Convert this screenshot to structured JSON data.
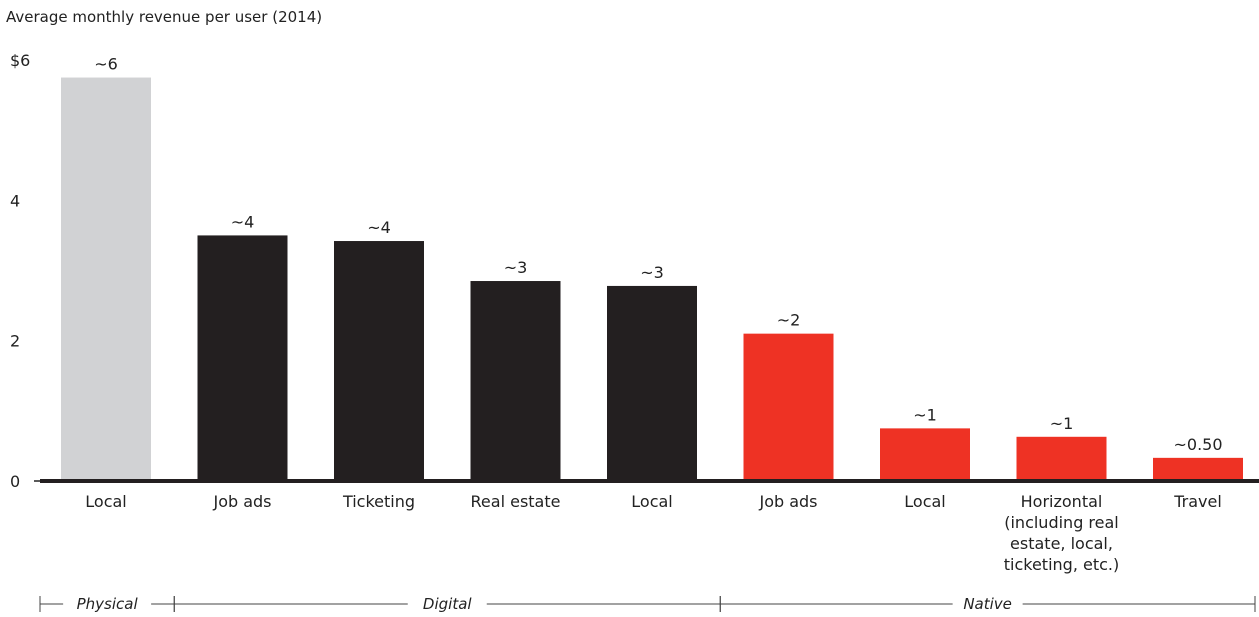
{
  "chart_data": {
    "type": "bar",
    "title": "Average monthly revenue per user (2014)",
    "ylim": [
      0,
      6
    ],
    "yticks": [
      {
        "value": 0,
        "label": "0"
      },
      {
        "value": 2,
        "label": "2"
      },
      {
        "value": 4,
        "label": "4"
      },
      {
        "value": 6,
        "label": "$6"
      }
    ],
    "categories": [
      "Local",
      "Job ads",
      "Ticketing",
      "Real estate",
      "Local",
      "Job ads",
      "Local",
      "Horizontal (including real estate, local, ticketing, etc.)",
      "Travel"
    ],
    "category_lines": [
      [
        "Local"
      ],
      [
        "Job ads"
      ],
      [
        "Ticketing"
      ],
      [
        "Real estate"
      ],
      [
        "Local"
      ],
      [
        "Job ads"
      ],
      [
        "Local"
      ],
      [
        "Horizontal",
        "(including real",
        "estate, local,",
        "ticketing, etc.)"
      ],
      [
        "Travel"
      ]
    ],
    "values": [
      5.75,
      3.5,
      3.42,
      2.85,
      2.78,
      2.1,
      0.75,
      0.63,
      0.33
    ],
    "data_labels": [
      "~6",
      "~4",
      "~4",
      "~3",
      "~3",
      "~2",
      "~1",
      "~1",
      "~0.50"
    ],
    "groups": [
      {
        "name": "Physical",
        "start": 0,
        "end": 0,
        "color": "#d1d2d4"
      },
      {
        "name": "Digital",
        "start": 1,
        "end": 4,
        "color": "#231f20"
      },
      {
        "name": "Native",
        "start": 5,
        "end": 8,
        "color": "#ee3224"
      }
    ],
    "grid": false
  }
}
